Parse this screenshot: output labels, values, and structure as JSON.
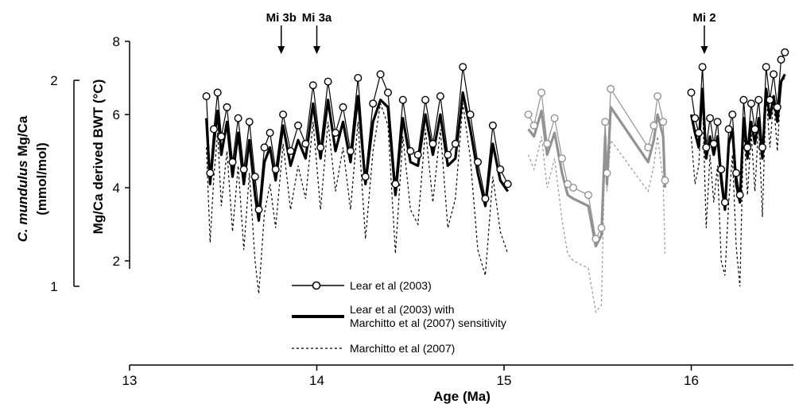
{
  "chart_data": {
    "type": "line",
    "xlabel": "Age (Ma)",
    "ylabel_inner": "Mg/Ca derived BWT (°C)",
    "ylabel_outer_line1_italic": "C. mundulus",
    "ylabel_outer_line1_rest": " Mg/Ca",
    "ylabel_outer_line2": "(mmol/mol)",
    "xlim": [
      13,
      16.5
    ],
    "xticks": [
      13,
      14,
      15,
      16
    ],
    "ylim_bwt": [
      1,
      9
    ],
    "yticks_bwt": [
      2,
      4,
      6,
      8
    ],
    "yticks_mgca": [
      1,
      2
    ],
    "events": [
      {
        "label": "Mi 3b",
        "age": 13.81
      },
      {
        "label": "Mi 3a",
        "age": 14.0
      },
      {
        "label": "Mi 2",
        "age": 16.07
      }
    ],
    "legend": [
      {
        "label": "Lear et al (2003)",
        "style": "open-circle-thin"
      },
      {
        "label": "Lear et al (2003) with\nMarchitto et al (2007) sensitivity",
        "style": "thick"
      },
      {
        "label": "Marchitto et al (2007)",
        "style": "dashed"
      }
    ],
    "colors": {
      "primary": "#000000",
      "faded": "#808080"
    },
    "segments": [
      {
        "age": [
          13.41,
          13.43,
          13.45,
          13.47,
          13.49,
          13.52,
          13.55,
          13.58,
          13.61,
          13.64,
          13.67,
          13.69,
          13.72,
          13.75,
          13.78,
          13.82,
          13.86,
          13.9,
          13.94,
          13.98,
          14.02,
          14.06,
          14.1,
          14.14,
          14.18,
          14.22,
          14.26,
          14.3,
          14.34,
          14.38,
          14.42,
          14.46,
          14.5,
          14.54,
          14.58,
          14.62,
          14.66,
          14.7,
          14.74,
          14.78,
          14.82,
          14.86,
          14.9,
          14.94,
          14.98,
          15.02
        ],
        "lear": [
          6.5,
          4.4,
          5.6,
          6.6,
          5.4,
          6.2,
          4.7,
          5.9,
          4.5,
          5.8,
          4.3,
          3.4,
          5.1,
          5.5,
          4.5,
          6.0,
          5.0,
          5.7,
          5.2,
          6.8,
          5.1,
          6.9,
          5.5,
          6.2,
          5.0,
          7.0,
          4.3,
          6.3,
          7.1,
          6.6,
          4.1,
          6.4,
          5.0,
          4.9,
          6.4,
          5.2,
          6.5,
          4.9,
          5.2,
          7.3,
          6.0,
          4.7,
          3.7,
          5.7,
          4.5,
          4.1
        ],
        "sensitive": [
          5.9,
          4.1,
          5.2,
          6.1,
          4.9,
          5.8,
          4.3,
          5.5,
          4.1,
          5.3,
          3.8,
          3.1,
          4.7,
          5.1,
          4.2,
          5.7,
          4.6,
          5.3,
          4.8,
          6.3,
          4.8,
          6.4,
          5.0,
          5.8,
          4.7,
          6.5,
          4.1,
          5.8,
          6.4,
          6.2,
          3.8,
          5.9,
          4.7,
          4.6,
          6.0,
          4.9,
          6.0,
          4.6,
          4.8,
          6.6,
          5.6,
          4.4,
          3.5,
          5.2,
          4.2,
          3.9
        ],
        "marchitto": [
          5.1,
          2.5,
          4.3,
          5.5,
          3.5,
          5.0,
          2.8,
          4.6,
          2.3,
          4.4,
          2.0,
          1.1,
          3.3,
          4.1,
          2.9,
          5.2,
          3.4,
          4.6,
          3.7,
          5.8,
          3.4,
          5.8,
          3.9,
          5.1,
          3.4,
          5.8,
          2.6,
          5.0,
          6.3,
          5.7,
          2.2,
          5.4,
          3.4,
          3.0,
          5.6,
          3.6,
          5.6,
          2.9,
          3.7,
          6.3,
          4.8,
          2.3,
          1.6,
          4.3,
          2.8,
          2.2
        ]
      },
      {
        "age": [
          15.13,
          15.16,
          15.2,
          15.23,
          15.27,
          15.31,
          15.34,
          15.37,
          15.45,
          15.49,
          15.52,
          15.54,
          15.55,
          15.57,
          15.77,
          15.8,
          15.82,
          15.85,
          15.86
        ],
        "lear": [
          6.0,
          5.7,
          6.6,
          5.2,
          5.9,
          4.8,
          4.1,
          4.0,
          3.8,
          2.6,
          2.9,
          5.8,
          4.4,
          6.7,
          5.1,
          5.7,
          6.5,
          5.8,
          4.2
        ],
        "sensitive": [
          5.6,
          5.4,
          6.1,
          4.9,
          5.5,
          4.4,
          3.8,
          3.7,
          3.5,
          2.4,
          2.7,
          5.4,
          4.1,
          6.2,
          4.7,
          5.3,
          6.0,
          5.4,
          4.0
        ],
        "marchitto": [
          4.9,
          4.5,
          5.4,
          4.0,
          4.8,
          3.1,
          2.2,
          2.0,
          1.8,
          0.6,
          0.8,
          5.2,
          3.9,
          5.3,
          3.9,
          4.6,
          5.4,
          4.2,
          2.2
        ]
      },
      {
        "age": [
          16.0,
          16.02,
          16.04,
          16.06,
          16.08,
          16.1,
          16.12,
          16.14,
          16.16,
          16.18,
          16.2,
          16.22,
          16.24,
          16.26,
          16.28,
          16.3,
          16.32,
          16.34,
          16.36,
          16.38,
          16.4,
          16.42,
          16.44,
          16.46,
          16.48,
          16.5
        ],
        "lear": [
          6.6,
          5.9,
          5.5,
          7.3,
          5.1,
          5.9,
          5.2,
          5.8,
          4.5,
          3.6,
          5.6,
          6.0,
          4.4,
          3.8,
          6.4,
          5.1,
          6.3,
          5.6,
          6.4,
          5.1,
          7.3,
          6.4,
          7.1,
          6.2,
          7.5,
          7.7
        ],
        "sensitive": [
          6.0,
          5.5,
          5.1,
          6.7,
          4.8,
          5.4,
          4.9,
          5.4,
          4.2,
          3.4,
          5.2,
          5.6,
          4.1,
          3.6,
          5.9,
          4.8,
          5.8,
          5.2,
          5.9,
          4.8,
          6.7,
          5.9,
          6.5,
          5.8,
          6.9,
          7.1
        ],
        "marchitto": [
          5.4,
          4.1,
          4.6,
          6.5,
          2.9,
          4.9,
          3.6,
          4.6,
          2.0,
          1.6,
          3.6,
          4.9,
          2.4,
          1.3,
          5.7,
          3.8,
          5.5,
          3.9,
          5.8,
          3.2,
          6.6,
          5.1,
          6.4,
          5.0,
          6.9,
          7.0
        ]
      }
    ]
  }
}
